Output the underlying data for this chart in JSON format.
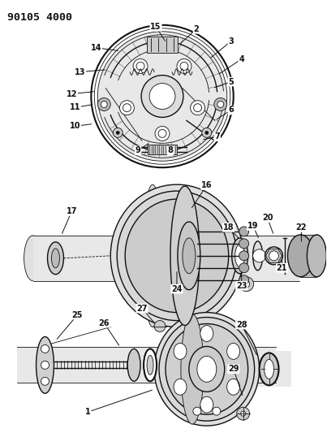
{
  "title": "90105 4000",
  "bg_color": "#ffffff",
  "fg_color": "#111111",
  "fig_width": 4.03,
  "fig_height": 5.33,
  "dpi": 100,
  "label_fontsize": 7.0,
  "title_fontsize": 9.5
}
